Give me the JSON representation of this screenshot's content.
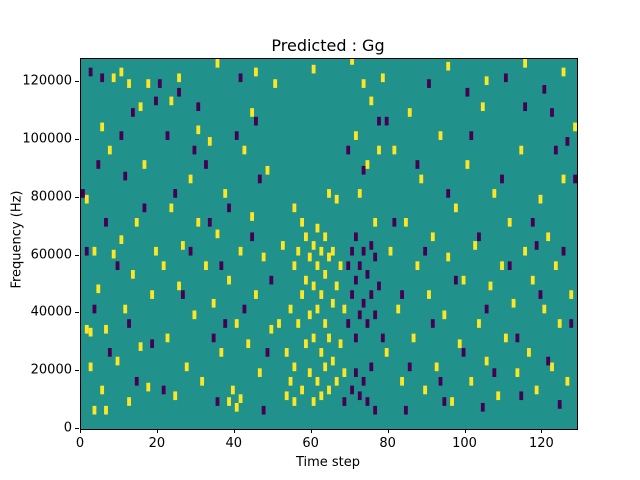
{
  "chart_data": {
    "type": "heatmap",
    "title": "Predicted : Gg",
    "xlabel": "Time step",
    "ylabel": "Frequency (Hz)",
    "xlim": [
      0,
      129
    ],
    "ylim": [
      0,
      128000
    ],
    "x_ticks": [
      0,
      20,
      40,
      60,
      80,
      100,
      120
    ],
    "y_ticks": [
      0,
      20000,
      40000,
      60000,
      80000,
      100000,
      120000
    ],
    "grid": false,
    "legend": "none",
    "colors": {
      "background": "#21918c",
      "high": "#fde725",
      "low": "#440154"
    },
    "y_scale_hz_per_unit": 1000,
    "cell": {
      "width_steps": 1,
      "height_units": 3
    },
    "points_high": [
      [
        1,
        78
      ],
      [
        1,
        33
      ],
      [
        2,
        32
      ],
      [
        2,
        20
      ],
      [
        3,
        60
      ],
      [
        4,
        47
      ],
      [
        5,
        12
      ],
      [
        5,
        103
      ],
      [
        6,
        33
      ],
      [
        7,
        95
      ],
      [
        8,
        59
      ],
      [
        8,
        120
      ],
      [
        9,
        22
      ],
      [
        10,
        64
      ],
      [
        10,
        122
      ],
      [
        11,
        40
      ],
      [
        12,
        8
      ],
      [
        12,
        118
      ],
      [
        13,
        52
      ],
      [
        14,
        70
      ],
      [
        15,
        27
      ],
      [
        15,
        110
      ],
      [
        16,
        90
      ],
      [
        17,
        13
      ],
      [
        18,
        45
      ],
      [
        19,
        60
      ],
      [
        3,
        5
      ],
      [
        6,
        5
      ],
      [
        17,
        118
      ],
      [
        21,
        55
      ],
      [
        22,
        30
      ],
      [
        23,
        75
      ],
      [
        24,
        10
      ],
      [
        25,
        48
      ],
      [
        25,
        120
      ],
      [
        26,
        62
      ],
      [
        27,
        20
      ],
      [
        28,
        85
      ],
      [
        29,
        38
      ],
      [
        30,
        70
      ],
      [
        31,
        15
      ],
      [
        32,
        55
      ],
      [
        33,
        98
      ],
      [
        34,
        42
      ],
      [
        35,
        66
      ],
      [
        35,
        125
      ],
      [
        36,
        25
      ],
      [
        37,
        80
      ],
      [
        38,
        50
      ],
      [
        38,
        8
      ],
      [
        39,
        12
      ],
      [
        40,
        6
      ],
      [
        40,
        35
      ],
      [
        41,
        9
      ],
      [
        41,
        60
      ],
      [
        42,
        95
      ],
      [
        43,
        28
      ],
      [
        44,
        72
      ],
      [
        45,
        45
      ],
      [
        45,
        122
      ],
      [
        46,
        18
      ],
      [
        47,
        58
      ],
      [
        48,
        88
      ],
      [
        49,
        33
      ],
      [
        50,
        118
      ],
      [
        44,
        108
      ],
      [
        30,
        102
      ],
      [
        23,
        112
      ],
      [
        53,
        10
      ],
      [
        53,
        25
      ],
      [
        54,
        40
      ],
      [
        54,
        15
      ],
      [
        55,
        55
      ],
      [
        55,
        20
      ],
      [
        55,
        8
      ],
      [
        56,
        35
      ],
      [
        56,
        60
      ],
      [
        57,
        12
      ],
      [
        57,
        45
      ],
      [
        57,
        70
      ],
      [
        58,
        28
      ],
      [
        58,
        50
      ],
      [
        58,
        65
      ],
      [
        59,
        18
      ],
      [
        59,
        38
      ],
      [
        59,
        58
      ],
      [
        60,
        8
      ],
      [
        60,
        30
      ],
      [
        60,
        48
      ],
      [
        60,
        62
      ],
      [
        61,
        15
      ],
      [
        61,
        40
      ],
      [
        61,
        55
      ],
      [
        61,
        68
      ],
      [
        62,
        10
      ],
      [
        62,
        25
      ],
      [
        62,
        45
      ],
      [
        62,
        60
      ],
      [
        63,
        20
      ],
      [
        63,
        35
      ],
      [
        63,
        52
      ],
      [
        63,
        65
      ],
      [
        64,
        12
      ],
      [
        64,
        30
      ],
      [
        64,
        58
      ],
      [
        65,
        22
      ],
      [
        65,
        42
      ],
      [
        65,
        60
      ],
      [
        66,
        15
      ],
      [
        66,
        48
      ],
      [
        67,
        28
      ],
      [
        67,
        55
      ],
      [
        68,
        18
      ],
      [
        68,
        40
      ],
      [
        60,
        123
      ],
      [
        64,
        80
      ],
      [
        66,
        78
      ],
      [
        55,
        75
      ],
      [
        52,
        62
      ],
      [
        51,
        35
      ],
      [
        70,
        126
      ],
      [
        71,
        100
      ],
      [
        72,
        80
      ],
      [
        73,
        118
      ],
      [
        74,
        90
      ],
      [
        75,
        112
      ],
      [
        76,
        70
      ],
      [
        77,
        95
      ],
      [
        78,
        120
      ],
      [
        79,
        25
      ],
      [
        80,
        60
      ],
      [
        81,
        95
      ],
      [
        82,
        40
      ],
      [
        83,
        15
      ],
      [
        84,
        70
      ],
      [
        85,
        108
      ],
      [
        86,
        30
      ],
      [
        87,
        55
      ],
      [
        88,
        85
      ],
      [
        89,
        12
      ],
      [
        90,
        45
      ],
      [
        91,
        65
      ],
      [
        92,
        20
      ],
      [
        93,
        100
      ],
      [
        94,
        38
      ],
      [
        95,
        58
      ],
      [
        95,
        124
      ],
      [
        96,
        8
      ],
      [
        97,
        75
      ],
      [
        98,
        28
      ],
      [
        99,
        50
      ],
      [
        100,
        90
      ],
      [
        101,
        15
      ],
      [
        102,
        62
      ],
      [
        103,
        35
      ],
      [
        104,
        110
      ],
      [
        105,
        22
      ],
      [
        106,
        48
      ],
      [
        107,
        80
      ],
      [
        108,
        10
      ],
      [
        109,
        55
      ],
      [
        110,
        30
      ],
      [
        111,
        70
      ],
      [
        112,
        42
      ],
      [
        113,
        18
      ],
      [
        114,
        95
      ],
      [
        115,
        60
      ],
      [
        115,
        125
      ],
      [
        116,
        25
      ],
      [
        117,
        50
      ],
      [
        118,
        12
      ],
      [
        119,
        78
      ],
      [
        120,
        40
      ],
      [
        121,
        65
      ],
      [
        122,
        20
      ],
      [
        123,
        55
      ],
      [
        124,
        35
      ],
      [
        125,
        85
      ],
      [
        126,
        15
      ],
      [
        127,
        45
      ],
      [
        128,
        103
      ],
      [
        125,
        122
      ],
      [
        105,
        119
      ]
    ],
    "points_low": [
      [
        0,
        80
      ],
      [
        1,
        60
      ],
      [
        3,
        40
      ],
      [
        4,
        90
      ],
      [
        6,
        70
      ],
      [
        7,
        25
      ],
      [
        9,
        55
      ],
      [
        10,
        100
      ],
      [
        12,
        35
      ],
      [
        14,
        15
      ],
      [
        16,
        75
      ],
      [
        18,
        28
      ],
      [
        19,
        112
      ],
      [
        2,
        122
      ],
      [
        11,
        86
      ],
      [
        5,
        120
      ],
      [
        13,
        108
      ],
      [
        20,
        118
      ],
      [
        21,
        12
      ],
      [
        22,
        100
      ],
      [
        24,
        80
      ],
      [
        25,
        115
      ],
      [
        26,
        45
      ],
      [
        28,
        60
      ],
      [
        29,
        95
      ],
      [
        30,
        110
      ],
      [
        32,
        90
      ],
      [
        33,
        70
      ],
      [
        34,
        30
      ],
      [
        36,
        55
      ],
      [
        37,
        35
      ],
      [
        38,
        75
      ],
      [
        40,
        100
      ],
      [
        41,
        120
      ],
      [
        42,
        40
      ],
      [
        44,
        65
      ],
      [
        45,
        105
      ],
      [
        46,
        85
      ],
      [
        48,
        25
      ],
      [
        49,
        50
      ],
      [
        47,
        5
      ],
      [
        35,
        8
      ],
      [
        68,
        8
      ],
      [
        69,
        35
      ],
      [
        69,
        55
      ],
      [
        70,
        12
      ],
      [
        70,
        45
      ],
      [
        70,
        60
      ],
      [
        71,
        18
      ],
      [
        71,
        30
      ],
      [
        71,
        50
      ],
      [
        71,
        65
      ],
      [
        72,
        10
      ],
      [
        72,
        38
      ],
      [
        72,
        55
      ],
      [
        73,
        15
      ],
      [
        73,
        42
      ],
      [
        73,
        60
      ],
      [
        74,
        8
      ],
      [
        74,
        35
      ],
      [
        74,
        52
      ],
      [
        75,
        20
      ],
      [
        75,
        45
      ],
      [
        75,
        62
      ],
      [
        76,
        5
      ],
      [
        76,
        38
      ],
      [
        76,
        58
      ],
      [
        77,
        48
      ],
      [
        78,
        30
      ],
      [
        69,
        95
      ],
      [
        73,
        88
      ],
      [
        77,
        105
      ],
      [
        79,
        105
      ],
      [
        81,
        70
      ],
      [
        83,
        45
      ],
      [
        84,
        5
      ],
      [
        85,
        20
      ],
      [
        87,
        90
      ],
      [
        89,
        60
      ],
      [
        90,
        118
      ],
      [
        91,
        35
      ],
      [
        93,
        15
      ],
      [
        94,
        8
      ],
      [
        95,
        80
      ],
      [
        97,
        50
      ],
      [
        99,
        25
      ],
      [
        100,
        115
      ],
      [
        101,
        100
      ],
      [
        103,
        65
      ],
      [
        104,
        6
      ],
      [
        105,
        40
      ],
      [
        107,
        18
      ],
      [
        109,
        85
      ],
      [
        110,
        120
      ],
      [
        111,
        55
      ],
      [
        113,
        30
      ],
      [
        114,
        10
      ],
      [
        115,
        110
      ],
      [
        117,
        70
      ],
      [
        119,
        45
      ],
      [
        120,
        116
      ],
      [
        121,
        22
      ],
      [
        123,
        95
      ],
      [
        124,
        7
      ],
      [
        125,
        60
      ],
      [
        127,
        35
      ],
      [
        128,
        85
      ],
      [
        122,
        108
      ],
      [
        126,
        98
      ],
      [
        118,
        62
      ]
    ]
  }
}
